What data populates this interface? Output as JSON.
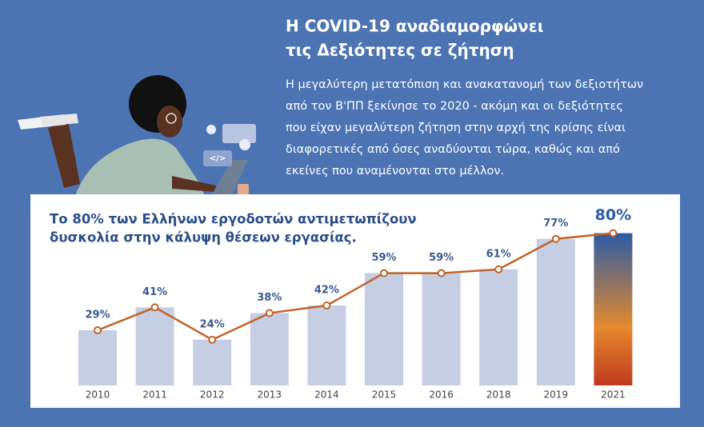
{
  "header": {
    "title": [
      "Η COVID-19 αναδιαμορφώνει",
      "τις Δεξιότητες σε ζήτηση"
    ],
    "body": [
      "Η μεγαλύτερη μετατόπιση και ανακατανομή των δεξιοτήτων",
      "από τον Β'ΠΠ ξεκίνησε το 2020 - ακόμη και οι δεξιότητες",
      "που είχαν μεγαλύτερη ζήτηση στην αρχή της κρίσης είναι",
      "διαφορετικές από όσες αναδύονται τώρα, καθώς και από",
      "εκείνες που αναμένονται στο μέλλον."
    ]
  },
  "illustration": {
    "code_icon": "</>"
  },
  "chart_data": {
    "type": "bar-line",
    "title": [
      "Το 80% των Ελλήνων εργοδοτών αντιμετωπίζουν",
      "δυσκολία στην κάλυψη θέσεων εργασίας."
    ],
    "categories": [
      "2010",
      "2011",
      "2012",
      "2013",
      "2014",
      "2015",
      "2016",
      "2018",
      "2019",
      "2021"
    ],
    "values": [
      29,
      41,
      24,
      38,
      42,
      59,
      59,
      61,
      77,
      80
    ],
    "value_labels": [
      "29%",
      "41%",
      "24%",
      "38%",
      "42%",
      "59%",
      "59%",
      "61%",
      "77%",
      "80%"
    ],
    "bar_color": "#c6cee4",
    "line_color": "#c2632b",
    "highlight_colors": [
      "#2c5ba6",
      "#e5892d",
      "#c0391f"
    ]
  }
}
